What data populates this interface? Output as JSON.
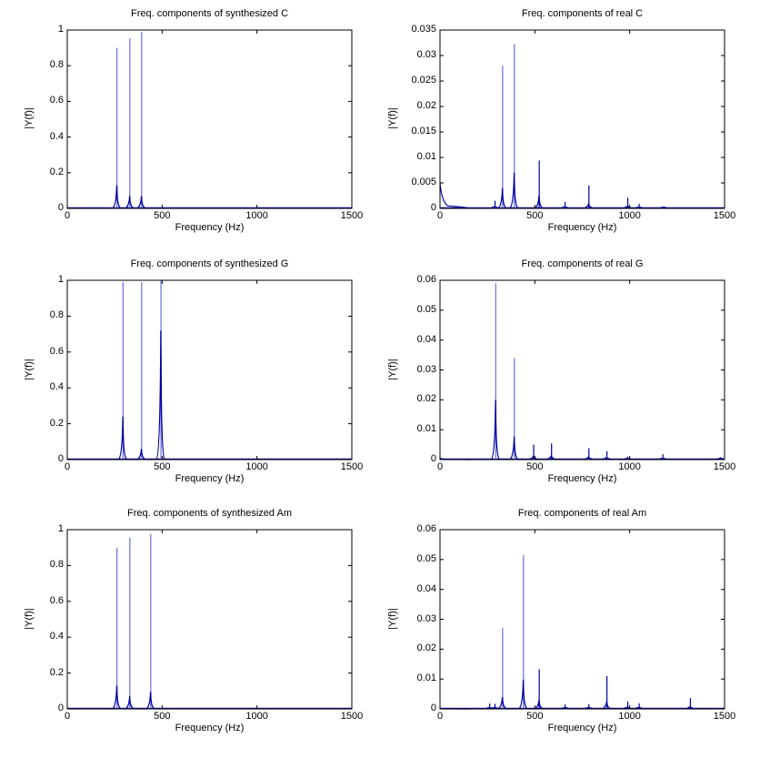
{
  "figure": {
    "background": "#ffffff",
    "line_color_dark": "#0000a0",
    "line_color_light": "#6a6ae0"
  },
  "chart_data": [
    {
      "type": "line",
      "id": "synth-c",
      "title": "Freq. components of synthesized C",
      "xlabel": "Frequency (Hz)",
      "ylabel": "|Y(f)|",
      "xlim": [
        0,
        1500
      ],
      "ylim": [
        0,
        1
      ],
      "xticks": [
        "0",
        "500",
        "1000",
        "1500"
      ],
      "yticks": [
        "0",
        "0.2",
        "0.4",
        "0.6",
        "0.8",
        "1"
      ],
      "grid": false,
      "peaks": [
        {
          "x": 262,
          "y": 0.9,
          "side": 0.13
        },
        {
          "x": 330,
          "y": 0.955,
          "side": 0.07
        },
        {
          "x": 392,
          "y": 0.99,
          "side": 0.07
        }
      ]
    },
    {
      "type": "line",
      "id": "real-c",
      "title": "Freq. components of real C",
      "xlabel": "Frequency (Hz)",
      "ylabel": "|Y(f)|",
      "xlim": [
        0,
        1500
      ],
      "ylim": [
        0,
        0.035
      ],
      "xticks": [
        "0",
        "500",
        "1000",
        "1500"
      ],
      "yticks": [
        "0",
        "0.005",
        "0.01",
        "0.015",
        "0.02",
        "0.025",
        "0.03",
        "0.035"
      ],
      "grid": false,
      "dc": 0.005,
      "peaks": [
        {
          "x": 290,
          "y": 0.0015
        },
        {
          "x": 330,
          "y": 0.028,
          "side": 0.004
        },
        {
          "x": 392,
          "y": 0.0323,
          "side": 0.007
        },
        {
          "x": 523,
          "y": 0.0094,
          "side": 0.0025
        },
        {
          "x": 660,
          "y": 0.0013
        },
        {
          "x": 785,
          "y": 0.0045,
          "side": 0.001
        },
        {
          "x": 990,
          "y": 0.0021
        },
        {
          "x": 1050,
          "y": 0.0009
        },
        {
          "x": 1180,
          "y": 0.0004
        }
      ]
    },
    {
      "type": "line",
      "id": "synth-g",
      "title": "Freq. components of synthesized G",
      "xlabel": "Frequency (Hz)",
      "ylabel": "|Y(f)|",
      "xlim": [
        0,
        1500
      ],
      "ylim": [
        0,
        1
      ],
      "xticks": [
        "0",
        "500",
        "1000",
        "1500"
      ],
      "yticks": [
        "0",
        "0.2",
        "0.4",
        "0.6",
        "0.8",
        "1"
      ],
      "grid": false,
      "peaks": [
        {
          "x": 294,
          "y": 0.99,
          "side": 0.24
        },
        {
          "x": 392,
          "y": 0.99,
          "side": 0.06
        },
        {
          "x": 494,
          "y": 1.0,
          "side": 0.72
        }
      ]
    },
    {
      "type": "line",
      "id": "real-g",
      "title": "Freq. components of real G",
      "xlabel": "Frequency (Hz)",
      "ylabel": "|Y(f)|",
      "xlim": [
        0,
        1500
      ],
      "ylim": [
        0,
        0.06
      ],
      "xticks": [
        "0",
        "500",
        "1000",
        "1500"
      ],
      "yticks": [
        "0",
        "0.01",
        "0.02",
        "0.03",
        "0.04",
        "0.05",
        "0.06"
      ],
      "grid": false,
      "dc": 0.0005,
      "peaks": [
        {
          "x": 294,
          "y": 0.059,
          "side": 0.02
        },
        {
          "x": 392,
          "y": 0.034,
          "side": 0.0077
        },
        {
          "x": 494,
          "y": 0.005
        },
        {
          "x": 588,
          "y": 0.0054
        },
        {
          "x": 785,
          "y": 0.0038
        },
        {
          "x": 880,
          "y": 0.0028
        },
        {
          "x": 990,
          "y": 0.001
        },
        {
          "x": 1175,
          "y": 0.0018
        },
        {
          "x": 1480,
          "y": 0.0008
        }
      ]
    },
    {
      "type": "line",
      "id": "synth-am",
      "title": "Freq. components of synthesized Am",
      "xlabel": "Frequency (Hz)",
      "ylabel": "|Y(f)|",
      "xlim": [
        0,
        1500
      ],
      "ylim": [
        0,
        1
      ],
      "xticks": [
        "0",
        "500",
        "1000",
        "1500"
      ],
      "yticks": [
        "0",
        "0.2",
        "0.4",
        "0.6",
        "0.8",
        "1"
      ],
      "grid": false,
      "peaks": [
        {
          "x": 262,
          "y": 0.9,
          "side": 0.13
        },
        {
          "x": 330,
          "y": 0.955,
          "side": 0.07
        },
        {
          "x": 440,
          "y": 0.975,
          "side": 0.095
        }
      ]
    },
    {
      "type": "line",
      "id": "real-am",
      "title": "Freq. components of real Am",
      "xlabel": "Frequency (Hz)",
      "ylabel": "|Y(f)|",
      "xlim": [
        0,
        1500
      ],
      "ylim": [
        0,
        0.06
      ],
      "xticks": [
        "0",
        "500",
        "1000",
        "1500"
      ],
      "yticks": [
        "0",
        "0.01",
        "0.02",
        "0.03",
        "0.04",
        "0.05",
        "0.06"
      ],
      "grid": false,
      "dc": 0.0002,
      "peaks": [
        {
          "x": 262,
          "y": 0.0018
        },
        {
          "x": 290,
          "y": 0.0017
        },
        {
          "x": 330,
          "y": 0.0272,
          "side": 0.004
        },
        {
          "x": 440,
          "y": 0.0515,
          "side": 0.0098
        },
        {
          "x": 523,
          "y": 0.0133,
          "side": 0.003
        },
        {
          "x": 660,
          "y": 0.0015
        },
        {
          "x": 785,
          "y": 0.0016
        },
        {
          "x": 880,
          "y": 0.011,
          "side": 0.0025
        },
        {
          "x": 990,
          "y": 0.0025
        },
        {
          "x": 1050,
          "y": 0.0019
        },
        {
          "x": 1320,
          "y": 0.0036
        }
      ]
    }
  ]
}
